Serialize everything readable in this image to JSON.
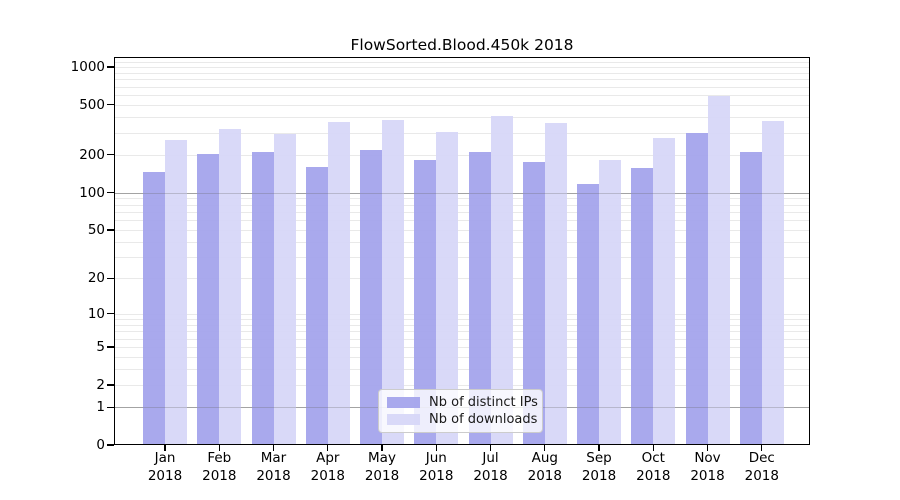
{
  "chart_data": {
    "type": "bar",
    "title": "FlowSorted.Blood.450k 2018",
    "yscale": "log1p",
    "ylim": [
      0,
      1200
    ],
    "yticks": [
      0,
      1,
      2,
      5,
      10,
      20,
      50,
      100,
      200,
      500,
      1000
    ],
    "grid": "horizontal, log-spaced minor lines, darker major lines at 1 and 100",
    "legend_position": "inside lower center",
    "categories": [
      "Jan",
      "Feb",
      "Mar",
      "Apr",
      "May",
      "Jun",
      "Jul",
      "Aug",
      "Sep",
      "Oct",
      "Nov",
      "Dec"
    ],
    "year_label": "2018",
    "series": [
      {
        "name": "Nb of distinct IPs",
        "color": "#a2a2ec",
        "values": [
          146,
          204,
          210,
          160,
          218,
          181,
          211,
          175,
          117,
          158,
          298,
          212
        ]
      },
      {
        "name": "Nb of downloads",
        "color": "#d6d6f7",
        "values": [
          261,
          320,
          296,
          366,
          382,
          304,
          408,
          357,
          181,
          273,
          587,
          373
        ]
      }
    ]
  },
  "colors": {
    "background": "#ffffff",
    "spine": "#000000",
    "grid_minor": "#e9e9e9",
    "grid_major": "#b6b6b6",
    "text": "#000000",
    "legend_border": "#cccccc",
    "legend_background": "rgba(255,255,255,0.8)"
  }
}
